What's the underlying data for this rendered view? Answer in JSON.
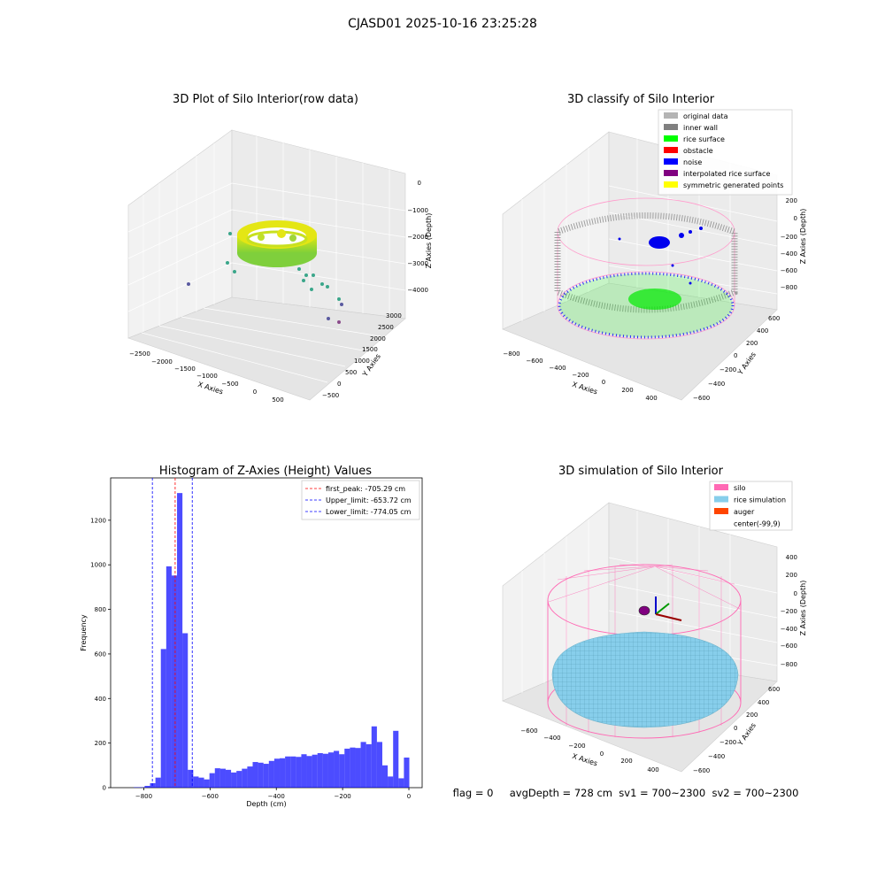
{
  "figure_title": "CJASD01 2025-10-16 23:25:28",
  "panels": {
    "raw": {
      "title": "3D Plot of Silo Interior(row data)",
      "xlabel": "X Axies",
      "ylabel": "Y Axies",
      "zlabel": "Z Axies (Depth)",
      "xticks": [
        "−2500",
        "−2000",
        "−1500",
        "−1000",
        "−500",
        "0",
        "500"
      ],
      "yticks": [
        "−500",
        "0",
        "500",
        "1000",
        "1500",
        "2000",
        "2500",
        "3000"
      ],
      "zticks": [
        "0",
        "−1000",
        "−2000",
        "−3000",
        "−4000"
      ]
    },
    "classify": {
      "title": "3D classify of Silo Interior",
      "xlabel": "X Axies",
      "ylabel": "Y Axies",
      "zlabel": "Z Axies (Depth)",
      "xticks": [
        "−800",
        "−600",
        "−400",
        "−200",
        "0",
        "200",
        "400"
      ],
      "yticks": [
        "−600",
        "−400",
        "−200",
        "0",
        "200",
        "400",
        "600"
      ],
      "zticks": [
        "200",
        "0",
        "−200",
        "−400",
        "−600",
        "−800"
      ],
      "legend": [
        {
          "label": "original data",
          "color": "#b4b4b4"
        },
        {
          "label": "inner wall",
          "color": "#808080"
        },
        {
          "label": "rice surface",
          "color": "#00ff00"
        },
        {
          "label": "obstacle",
          "color": "#ff0000"
        },
        {
          "label": "noise",
          "color": "#0000ff"
        },
        {
          "label": "interpolated rice surface",
          "color": "#800080"
        },
        {
          "label": "symmetric generated points",
          "color": "#ffff00"
        }
      ]
    },
    "simulation": {
      "title": "3D simulation of Silo Interior",
      "xlabel": "X Axies",
      "ylabel": "Y Axies",
      "zlabel": "Z Axies (Depth)",
      "xticks": [
        "−600",
        "−400",
        "−200",
        "0",
        "200",
        "400"
      ],
      "yticks": [
        "−600",
        "−400",
        "−200",
        "0",
        "200",
        "400",
        "600"
      ],
      "zticks": [
        "400",
        "200",
        "0",
        "−200",
        "−400",
        "−600",
        "−800"
      ],
      "legend": [
        {
          "label": "silo",
          "color": "#ff69b4"
        },
        {
          "label": "rice simulation",
          "color": "#87ceeb"
        },
        {
          "label": "auger",
          "color": "#ff4500"
        },
        {
          "label": "center(-99,9)",
          "color": ""
        }
      ]
    }
  },
  "status_text": "flag = 0     avgDepth = 728 cm  sv1 = 700~2300  sv2 = 700~2300",
  "chart_data": [
    {
      "type": "histogram",
      "title": "Histogram of Z-Axies (Height) Values",
      "xlabel": "Depth (cm)",
      "ylabel": "Frequency",
      "xlim": [
        -900,
        40
      ],
      "ylim": [
        0,
        1390
      ],
      "xticks": [
        -800,
        -600,
        -400,
        -200,
        0
      ],
      "xtick_labels": [
        "−800",
        "−600",
        "−400",
        "−200",
        "0"
      ],
      "yticks": [
        0,
        200,
        400,
        600,
        800,
        1000,
        1200
      ],
      "bar_color": "#0000ff",
      "bar_opacity": 0.7,
      "bin_width": 16.3,
      "bins": [
        {
          "x": -830,
          "y": 2
        },
        {
          "x": -813.7,
          "y": 2
        },
        {
          "x": -797.4,
          "y": 8
        },
        {
          "x": -781.1,
          "y": 20
        },
        {
          "x": -764.8,
          "y": 45
        },
        {
          "x": -748.5,
          "y": 622
        },
        {
          "x": -732.2,
          "y": 993
        },
        {
          "x": -715.9,
          "y": 952
        },
        {
          "x": -699.6,
          "y": 1322
        },
        {
          "x": -683.3,
          "y": 693
        },
        {
          "x": -667,
          "y": 80
        },
        {
          "x": -650.7,
          "y": 50
        },
        {
          "x": -634.4,
          "y": 45
        },
        {
          "x": -618.1,
          "y": 37
        },
        {
          "x": -601.8,
          "y": 65
        },
        {
          "x": -585.5,
          "y": 87
        },
        {
          "x": -569.2,
          "y": 85
        },
        {
          "x": -552.9,
          "y": 80
        },
        {
          "x": -536.6,
          "y": 68
        },
        {
          "x": -520.3,
          "y": 75
        },
        {
          "x": -504,
          "y": 85
        },
        {
          "x": -487.7,
          "y": 95
        },
        {
          "x": -471.4,
          "y": 115
        },
        {
          "x": -455.1,
          "y": 112
        },
        {
          "x": -438.8,
          "y": 107
        },
        {
          "x": -422.5,
          "y": 120
        },
        {
          "x": -406.2,
          "y": 130
        },
        {
          "x": -389.9,
          "y": 132
        },
        {
          "x": -373.6,
          "y": 140
        },
        {
          "x": -357.3,
          "y": 140
        },
        {
          "x": -341,
          "y": 138
        },
        {
          "x": -324.7,
          "y": 150
        },
        {
          "x": -308.4,
          "y": 142
        },
        {
          "x": -292.1,
          "y": 148
        },
        {
          "x": -275.8,
          "y": 155
        },
        {
          "x": -259.5,
          "y": 152
        },
        {
          "x": -243.2,
          "y": 158
        },
        {
          "x": -226.9,
          "y": 165
        },
        {
          "x": -210.6,
          "y": 150
        },
        {
          "x": -194.3,
          "y": 175
        },
        {
          "x": -178,
          "y": 180
        },
        {
          "x": -161.7,
          "y": 178
        },
        {
          "x": -145.4,
          "y": 205
        },
        {
          "x": -129.1,
          "y": 195
        },
        {
          "x": -112.8,
          "y": 275
        },
        {
          "x": -96.5,
          "y": 205
        },
        {
          "x": -80.2,
          "y": 100
        },
        {
          "x": -63.9,
          "y": 50
        },
        {
          "x": -47.6,
          "y": 255
        },
        {
          "x": -31.3,
          "y": 42
        },
        {
          "x": -15,
          "y": 135
        }
      ],
      "reference_lines": [
        {
          "label": "first_peak: -705.29 cm",
          "x": -705.29,
          "color": "#ff0000"
        },
        {
          "label": "Upper_limit: -653.72 cm",
          "x": -653.72,
          "color": "#0000ff"
        },
        {
          "label": "Lower_limit: -774.05 cm",
          "x": -774.05,
          "color": "#0000ff"
        }
      ]
    }
  ]
}
